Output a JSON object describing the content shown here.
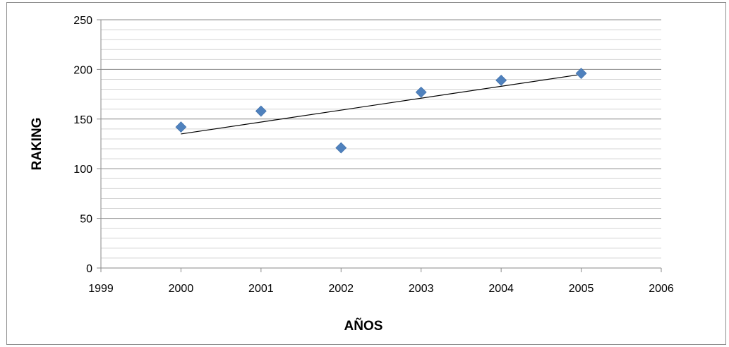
{
  "chart_data": {
    "type": "scatter",
    "title": "",
    "xlabel": "AÑOS",
    "ylabel": "RAKING",
    "xlim": [
      1999,
      2006
    ],
    "ylim": [
      0,
      250
    ],
    "x_ticks": [
      1999,
      2000,
      2001,
      2002,
      2003,
      2004,
      2005,
      2006
    ],
    "y_ticks": [
      0,
      50,
      100,
      150,
      200,
      250
    ],
    "grid": "horizontal, major and minor",
    "minor_y_step": 10,
    "legend": "none",
    "series": [
      {
        "marker": "diamond",
        "color": "#4F81BD",
        "x": [
          2000,
          2001,
          2002,
          2003,
          2004,
          2005
        ],
        "y": [
          142,
          158,
          121,
          177,
          189,
          196
        ]
      }
    ],
    "trendline": {
      "type": "linear",
      "color": "#000000",
      "x": [
        2000,
        2005
      ],
      "y": [
        135,
        195
      ]
    }
  }
}
